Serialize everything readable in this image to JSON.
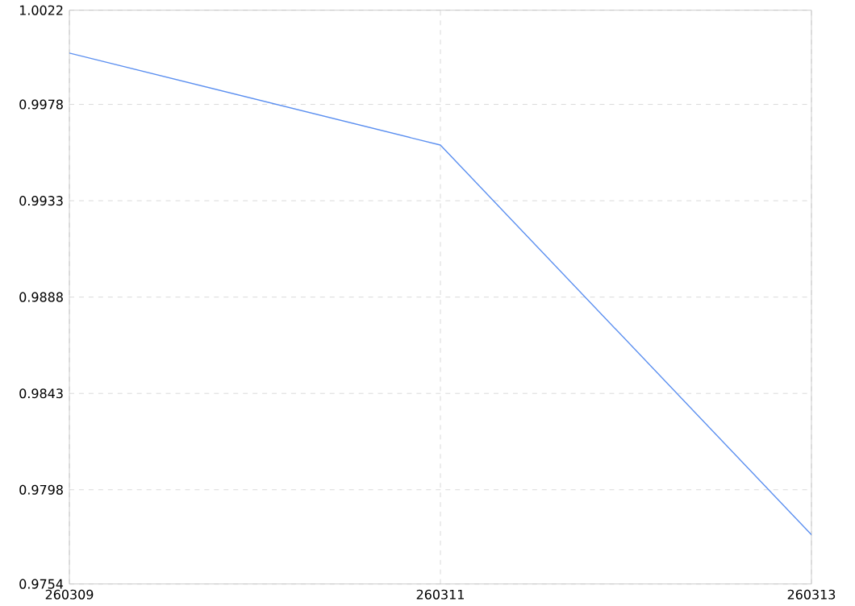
{
  "chart_data": {
    "type": "line",
    "categories": [
      "260309",
      "260311",
      "260313"
    ],
    "series": [
      {
        "color": "#5b8ff0",
        "values": [
          1.0002,
          0.9959,
          0.9777
        ]
      }
    ],
    "ylim": [
      0.9754,
      1.0022
    ],
    "yticks": [
      0.9754,
      0.9798,
      0.9843,
      0.9888,
      0.9933,
      0.9978,
      1.0022
    ],
    "grid": true,
    "marker": "none",
    "line_style": "solid"
  }
}
